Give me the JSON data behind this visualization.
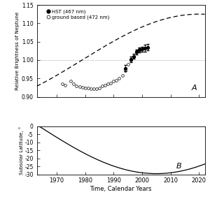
{
  "xlabel": "Time, Calendar Years",
  "ylabel_a": "Relative Brightness of Neptune",
  "ylabel_b": "Subsolar Latitude, °",
  "xlim": [
    1963,
    2022
  ],
  "ylim_a": [
    0.9,
    1.15
  ],
  "ylim_b": [
    -30,
    0
  ],
  "yticks_a": [
    0.9,
    0.95,
    1.0,
    1.05,
    1.1,
    1.15
  ],
  "yticks_b": [
    0,
    -5,
    -10,
    -15,
    -20,
    -25,
    -30
  ],
  "xticks": [
    1970,
    1980,
    1990,
    2000,
    2010,
    2020
  ],
  "ground_based": [
    [
      1972,
      0.935
    ],
    [
      1973,
      0.932
    ],
    [
      1975,
      0.942
    ],
    [
      1976,
      0.936
    ],
    [
      1977,
      0.93
    ],
    [
      1978,
      0.927
    ],
    [
      1979,
      0.925
    ],
    [
      1980,
      0.924
    ],
    [
      1981,
      0.924
    ],
    [
      1982,
      0.922
    ],
    [
      1983,
      0.922
    ],
    [
      1984,
      0.922
    ],
    [
      1985,
      0.923
    ],
    [
      1986,
      0.93
    ],
    [
      1987,
      0.932
    ],
    [
      1988,
      0.935
    ],
    [
      1989,
      0.938
    ],
    [
      1990,
      0.942
    ],
    [
      1991,
      0.945
    ],
    [
      1992,
      0.95
    ],
    [
      1993,
      0.958
    ],
    [
      1994,
      0.972
    ],
    [
      1995,
      0.988
    ],
    [
      1996,
      1.0
    ],
    [
      1997,
      1.01
    ],
    [
      1998,
      1.02
    ],
    [
      1999,
      1.025
    ]
  ],
  "hst": [
    [
      1994,
      0.978
    ],
    [
      1996,
      1.002
    ],
    [
      1997,
      1.01
    ],
    [
      1998,
      1.022
    ],
    [
      1999,
      1.028
    ],
    [
      2000,
      1.03
    ],
    [
      2001,
      1.032
    ],
    [
      2002,
      1.035
    ]
  ],
  "hst_errors": [
    0.008,
    0.007,
    0.007,
    0.007,
    0.007,
    0.007,
    0.009,
    0.009
  ],
  "seasonal_peak_year": 2020.1,
  "seasonal_amplitude": 0.125,
  "neptune_period": 164.8,
  "brightness_ref_year": 1996.6,
  "subsolar_tilt": 29.56,
  "subsolar_min_year": 2005.0,
  "background_color": "#ffffff",
  "legend_hst": "HST (467 nm)",
  "legend_gb": "ground based (472 nm)",
  "label_a": "A",
  "label_b": "B"
}
